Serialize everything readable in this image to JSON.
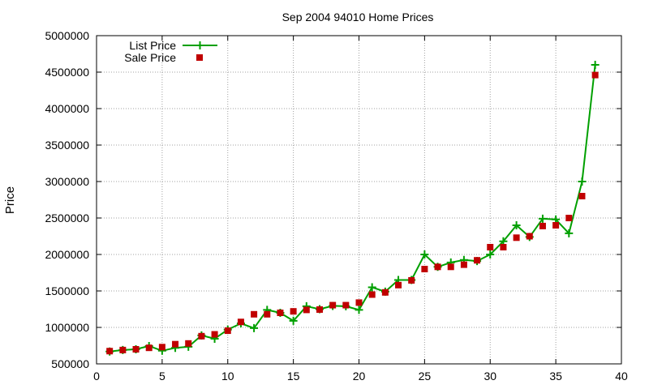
{
  "chart_data": {
    "type": "line",
    "title": "Sep 2004 94010 Home Prices",
    "xlabel": "",
    "ylabel": "Price",
    "xlim": [
      0,
      40
    ],
    "ylim": [
      500000,
      5000000
    ],
    "x_ticks": [
      "0",
      "5",
      "10",
      "15",
      "20",
      "25",
      "30",
      "35",
      "40"
    ],
    "y_ticks": [
      "500000",
      "1000000",
      "1500000",
      "2000000",
      "2500000",
      "3000000",
      "3500000",
      "4000000",
      "4500000",
      "5000000"
    ],
    "grid": true,
    "legend_position": "top-left",
    "x": [
      1,
      2,
      3,
      4,
      5,
      6,
      7,
      8,
      9,
      10,
      11,
      12,
      13,
      14,
      15,
      16,
      17,
      18,
      19,
      20,
      21,
      22,
      23,
      24,
      25,
      26,
      27,
      28,
      29,
      30,
      31,
      32,
      33,
      34,
      35,
      36,
      37,
      38
    ],
    "series": [
      {
        "name": "List Price",
        "style": "line-plus",
        "color": "#00a000",
        "values": [
          670000,
          690000,
          700000,
          745000,
          680000,
          720000,
          735000,
          890000,
          845000,
          970000,
          1055000,
          990000,
          1240000,
          1200000,
          1090000,
          1290000,
          1250000,
          1295000,
          1290000,
          1240000,
          1550000,
          1490000,
          1650000,
          1650000,
          2000000,
          1830000,
          1890000,
          1925000,
          1910000,
          2000000,
          2180000,
          2400000,
          2240000,
          2490000,
          2480000,
          2290000,
          3000000,
          4600000
        ]
      },
      {
        "name": "Sale Price",
        "style": "square-markers",
        "color": "#c00000",
        "values": [
          675000,
          690000,
          700000,
          720000,
          730000,
          770000,
          780000,
          880000,
          905000,
          955000,
          1075000,
          1180000,
          1180000,
          1200000,
          1220000,
          1240000,
          1245000,
          1305000,
          1305000,
          1340000,
          1450000,
          1480000,
          1580000,
          1645000,
          1800000,
          1830000,
          1830000,
          1860000,
          1920000,
          2100000,
          2100000,
          2230000,
          2250000,
          2390000,
          2400000,
          2500000,
          2800000,
          4460000
        ]
      }
    ]
  }
}
